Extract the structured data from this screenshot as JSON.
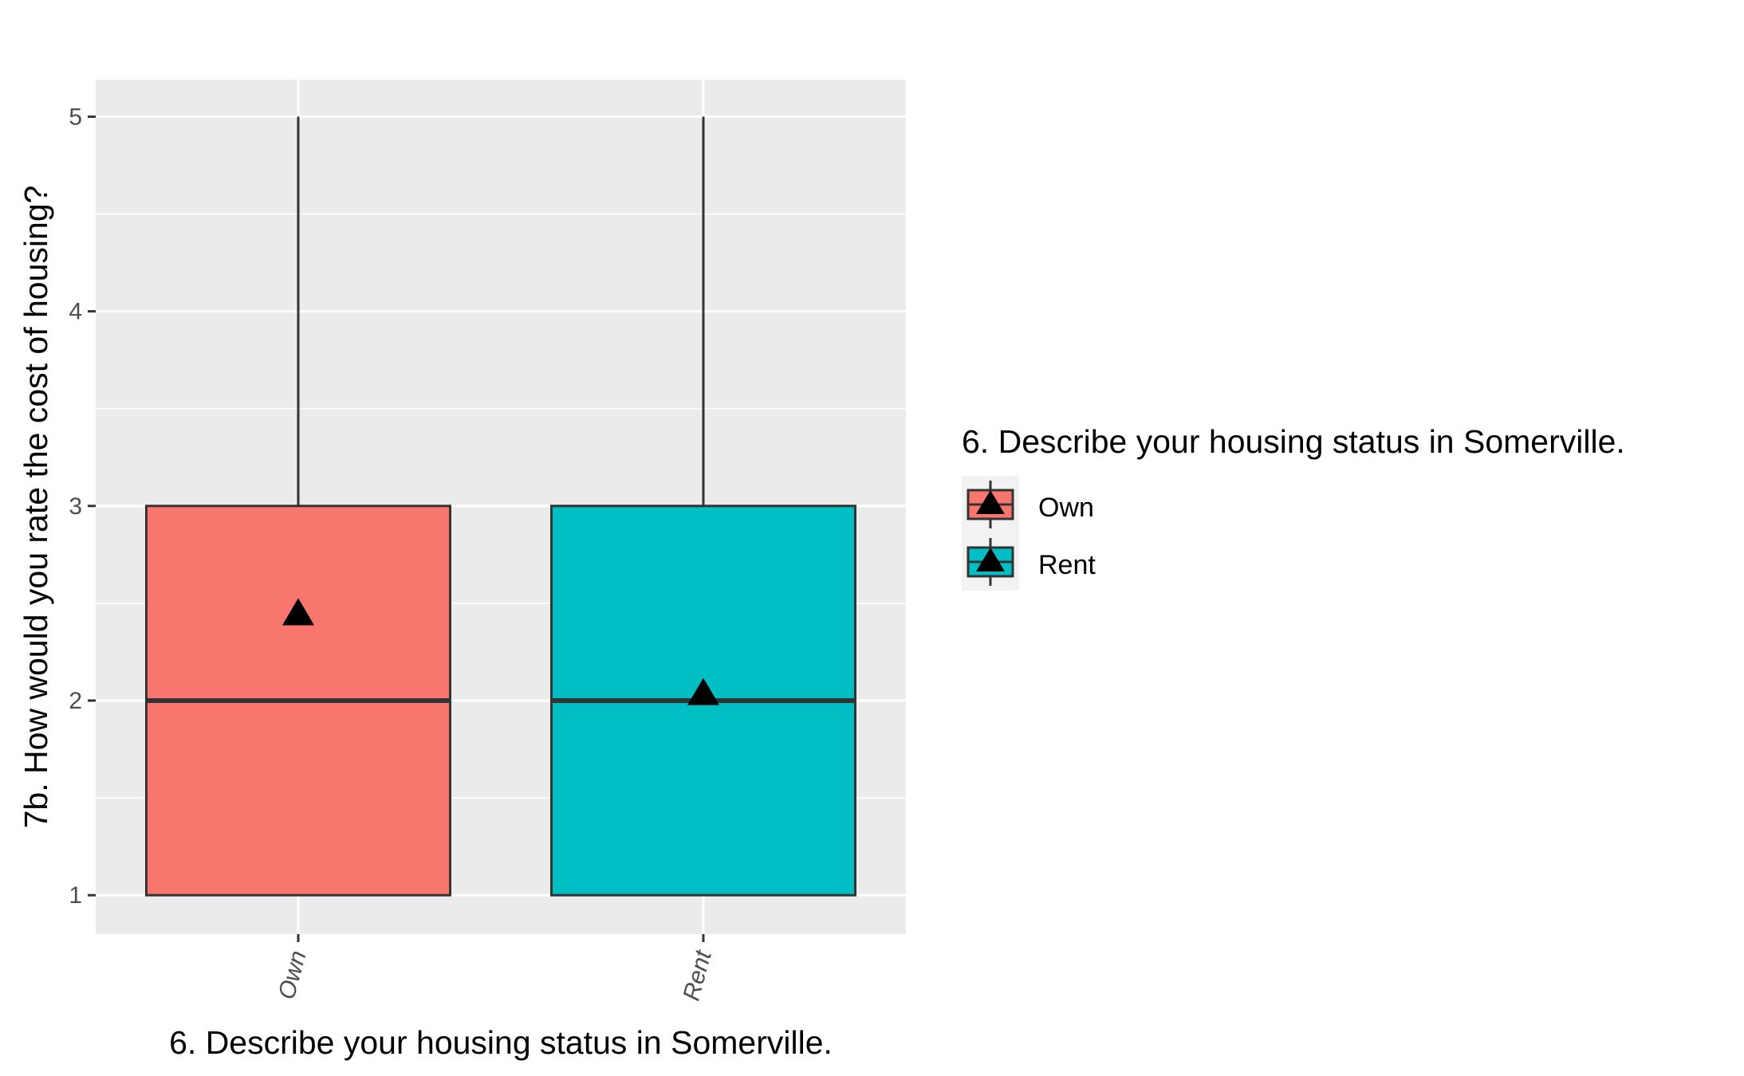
{
  "chart_data": {
    "type": "boxplot",
    "xlabel": "6. Describe your housing status in Somerville.",
    "ylabel": "7b. How would you rate the cost of housing?",
    "ylim": [
      0.8,
      5.19
    ],
    "yticks": [
      1,
      2,
      3,
      4,
      5
    ],
    "yticks_labels": [
      "1",
      "2",
      "3",
      "4",
      "5"
    ],
    "grid": true,
    "categories": [
      "Own",
      "Rent"
    ],
    "series": [
      {
        "name": "Own",
        "color": "#F8766D",
        "min": 1,
        "q1": 1,
        "median": 2,
        "q3": 3,
        "max": 5,
        "mean": 2.44
      },
      {
        "name": "Rent",
        "color": "#00BFC4",
        "min": 1,
        "q1": 1,
        "median": 2,
        "q3": 3,
        "max": 5,
        "mean": 2.03
      }
    ],
    "mean_marker": "triangle",
    "legend": {
      "title": "6. Describe your housing status in Somerville.",
      "position": "right",
      "items": [
        "Own",
        "Rent"
      ]
    },
    "colors": {
      "panel_background": "#EBEBEB",
      "grid": "#FFFFFF",
      "outline": "#333333",
      "mean_marker": "#000000"
    }
  }
}
